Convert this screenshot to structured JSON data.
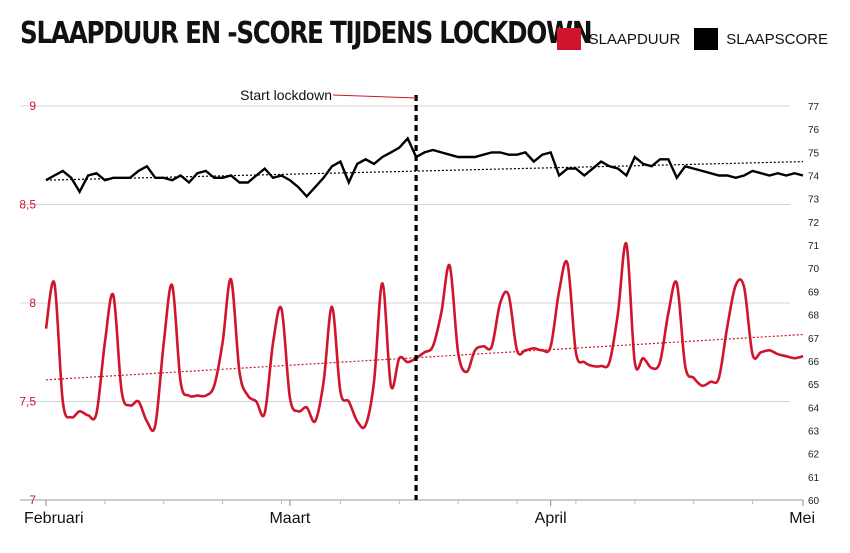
{
  "chart_data": {
    "type": "line",
    "title": "SLAAPDUUR EN -SCORE TIJDENS LOCKDOWN",
    "legend": {
      "position": "top-right"
    },
    "colors": {
      "slaapduur": "#d0142c",
      "slaapscore": "#000000",
      "grid": "#d4d4d4",
      "left_axis": "#d0142c"
    },
    "x_axis": {
      "start": "2020-02-01",
      "end": "2020-05-01",
      "tick_labels": [
        "Februari",
        "Maart",
        "April",
        "Mei"
      ],
      "tick_dates": [
        "2020-02-01",
        "2020-03-01",
        "2020-04-01",
        "2020-05-01"
      ]
    },
    "y_left": {
      "range": [
        7,
        9
      ],
      "ticks": [
        "7",
        "7,5",
        "8",
        "8,5",
        "9"
      ],
      "tick_values": [
        7,
        7.5,
        8,
        8.5,
        9
      ]
    },
    "y_right": {
      "range": [
        60,
        77
      ],
      "ticks": [
        "60",
        "61",
        "62",
        "63",
        "64",
        "65",
        "66",
        "67",
        "68",
        "69",
        "70",
        "71",
        "72",
        "73",
        "74",
        "75",
        "76",
        "77"
      ],
      "tick_values": [
        60,
        61,
        62,
        63,
        64,
        65,
        66,
        67,
        68,
        69,
        70,
        71,
        72,
        73,
        74,
        75,
        76,
        77
      ]
    },
    "annotation": {
      "text": "Start lockdown",
      "date": "2020-03-16"
    },
    "series": [
      {
        "name": "SLAAPDUUR",
        "axis": "left",
        "x": [
          "2020-02-01",
          "2020-02-02",
          "2020-02-03",
          "2020-02-04",
          "2020-02-05",
          "2020-02-06",
          "2020-02-07",
          "2020-02-08",
          "2020-02-09",
          "2020-02-10",
          "2020-02-11",
          "2020-02-12",
          "2020-02-13",
          "2020-02-14",
          "2020-02-15",
          "2020-02-16",
          "2020-02-17",
          "2020-02-18",
          "2020-02-19",
          "2020-02-20",
          "2020-02-21",
          "2020-02-22",
          "2020-02-23",
          "2020-02-24",
          "2020-02-25",
          "2020-02-26",
          "2020-02-27",
          "2020-02-28",
          "2020-02-29",
          "2020-03-01",
          "2020-03-02",
          "2020-03-03",
          "2020-03-04",
          "2020-03-05",
          "2020-03-06",
          "2020-03-07",
          "2020-03-08",
          "2020-03-09",
          "2020-03-10",
          "2020-03-11",
          "2020-03-12",
          "2020-03-13",
          "2020-03-14",
          "2020-03-15",
          "2020-03-16",
          "2020-03-17",
          "2020-03-18",
          "2020-03-19",
          "2020-03-20",
          "2020-03-21",
          "2020-03-22",
          "2020-03-23",
          "2020-03-24",
          "2020-03-25",
          "2020-03-26",
          "2020-03-27",
          "2020-03-28",
          "2020-03-29",
          "2020-03-30",
          "2020-03-31",
          "2020-04-01",
          "2020-04-02",
          "2020-04-03",
          "2020-04-04",
          "2020-04-05",
          "2020-04-06",
          "2020-04-07",
          "2020-04-08",
          "2020-04-09",
          "2020-04-10",
          "2020-04-11",
          "2020-04-12",
          "2020-04-13",
          "2020-04-14",
          "2020-04-15",
          "2020-04-16",
          "2020-04-17",
          "2020-04-18",
          "2020-04-19",
          "2020-04-20",
          "2020-04-21",
          "2020-04-22",
          "2020-04-23",
          "2020-04-24",
          "2020-04-25",
          "2020-04-26",
          "2020-04-27",
          "2020-04-28",
          "2020-04-29",
          "2020-04-30",
          "2020-05-01"
        ],
        "values": [
          7.87,
          8.1,
          7.5,
          7.42,
          7.45,
          7.43,
          7.44,
          7.8,
          8.04,
          7.55,
          7.48,
          7.5,
          7.4,
          7.38,
          7.8,
          8.09,
          7.6,
          7.53,
          7.53,
          7.53,
          7.58,
          7.8,
          8.12,
          7.65,
          7.53,
          7.5,
          7.44,
          7.8,
          7.97,
          7.52,
          7.45,
          7.47,
          7.4,
          7.6,
          7.98,
          7.55,
          7.5,
          7.4,
          7.38,
          7.6,
          8.1,
          7.58,
          7.72,
          7.7,
          7.72,
          7.75,
          7.78,
          7.95,
          8.19,
          7.75,
          7.65,
          7.76,
          7.78,
          7.78,
          8.0,
          8.04,
          7.76,
          7.76,
          7.77,
          7.76,
          7.78,
          8.06,
          8.2,
          7.75,
          7.7,
          7.68,
          7.68,
          7.7,
          7.95,
          8.3,
          7.7,
          7.72,
          7.67,
          7.7,
          7.95,
          8.1,
          7.68,
          7.62,
          7.58,
          7.6,
          7.62,
          7.88,
          8.09,
          8.08,
          7.74,
          7.75,
          7.76,
          7.74,
          7.73,
          7.72,
          7.73
        ],
        "trend": [
          7.61,
          7.84
        ]
      },
      {
        "name": "SLAAPSCORE",
        "axis": "right",
        "x": [
          "2020-02-01",
          "2020-02-02",
          "2020-02-03",
          "2020-02-04",
          "2020-02-05",
          "2020-02-06",
          "2020-02-07",
          "2020-02-08",
          "2020-02-09",
          "2020-02-10",
          "2020-02-11",
          "2020-02-12",
          "2020-02-13",
          "2020-02-14",
          "2020-02-15",
          "2020-02-16",
          "2020-02-17",
          "2020-02-18",
          "2020-02-19",
          "2020-02-20",
          "2020-02-21",
          "2020-02-22",
          "2020-02-23",
          "2020-02-24",
          "2020-02-25",
          "2020-02-26",
          "2020-02-27",
          "2020-02-28",
          "2020-02-29",
          "2020-03-01",
          "2020-03-02",
          "2020-03-03",
          "2020-03-04",
          "2020-03-05",
          "2020-03-06",
          "2020-03-07",
          "2020-03-08",
          "2020-03-09",
          "2020-03-10",
          "2020-03-11",
          "2020-03-12",
          "2020-03-13",
          "2020-03-14",
          "2020-03-15",
          "2020-03-16",
          "2020-03-17",
          "2020-03-18",
          "2020-03-19",
          "2020-03-20",
          "2020-03-21",
          "2020-03-22",
          "2020-03-23",
          "2020-03-24",
          "2020-03-25",
          "2020-03-26",
          "2020-03-27",
          "2020-03-28",
          "2020-03-29",
          "2020-03-30",
          "2020-03-31",
          "2020-04-01",
          "2020-04-02",
          "2020-04-03",
          "2020-04-04",
          "2020-04-05",
          "2020-04-06",
          "2020-04-07",
          "2020-04-08",
          "2020-04-09",
          "2020-04-10",
          "2020-04-11",
          "2020-04-12",
          "2020-04-13",
          "2020-04-14",
          "2020-04-15",
          "2020-04-16",
          "2020-04-17",
          "2020-04-18",
          "2020-04-19",
          "2020-04-20",
          "2020-04-21",
          "2020-04-22",
          "2020-04-23",
          "2020-04-24",
          "2020-04-25",
          "2020-04-26",
          "2020-04-27",
          "2020-04-28",
          "2020-04-29",
          "2020-04-30",
          "2020-05-01"
        ],
        "values": [
          73.8,
          74.0,
          74.2,
          73.9,
          73.3,
          74.0,
          74.1,
          73.8,
          73.9,
          73.9,
          73.9,
          74.2,
          74.4,
          73.9,
          73.9,
          73.8,
          74.0,
          73.7,
          74.1,
          74.2,
          73.9,
          73.9,
          74.0,
          73.7,
          73.7,
          74.0,
          74.3,
          73.9,
          74.0,
          73.8,
          73.5,
          73.1,
          73.5,
          73.9,
          74.4,
          74.6,
          73.7,
          74.5,
          74.7,
          74.5,
          74.8,
          75.0,
          75.2,
          75.6,
          74.8,
          75.0,
          75.1,
          75.0,
          74.9,
          74.8,
          74.8,
          74.8,
          74.9,
          75.0,
          75.0,
          74.9,
          74.9,
          75.0,
          74.6,
          74.9,
          75.0,
          74.0,
          74.3,
          74.3,
          74.0,
          74.3,
          74.6,
          74.4,
          74.3,
          74.0,
          74.8,
          74.5,
          74.4,
          74.7,
          74.7,
          73.9,
          74.4,
          74.3,
          74.2,
          74.1,
          74.0,
          74.0,
          73.9,
          74.0,
          74.2,
          74.1,
          74.0,
          74.1,
          74.0,
          74.1,
          74.0
        ],
        "trend": [
          73.8,
          74.6
        ]
      }
    ]
  }
}
